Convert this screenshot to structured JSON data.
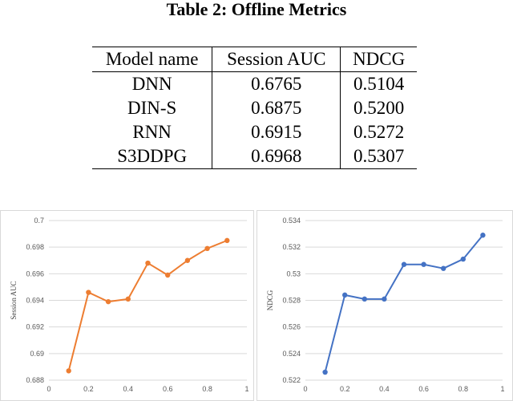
{
  "table": {
    "caption": "Table 2: Offline Metrics",
    "headers": [
      "Model name",
      "Session AUC",
      "NDCG"
    ],
    "rows": [
      [
        "DNN",
        "0.6765",
        "0.5104"
      ],
      [
        "DIN-S",
        "0.6875",
        "0.5200"
      ],
      [
        "RNN",
        "0.6915",
        "0.5272"
      ],
      [
        "S3DDPG",
        "0.6968",
        "0.5307"
      ]
    ]
  },
  "chart_data": [
    {
      "type": "line",
      "ylabel": "Session AUC",
      "xlabel": "",
      "x": [
        0.1,
        0.2,
        0.3,
        0.4,
        0.5,
        0.6,
        0.7,
        0.8,
        0.9
      ],
      "series": [
        {
          "values": [
            0.6887,
            0.6946,
            0.6939,
            0.6941,
            0.6968,
            0.6959,
            0.697,
            0.6979,
            0.6985
          ],
          "color": "#ED7D31"
        }
      ],
      "xlim": [
        0,
        1
      ],
      "ylim": [
        0.688,
        0.7
      ],
      "xticks": [
        "0",
        "0.2",
        "0.4",
        "0.6",
        "0.8",
        "1"
      ],
      "yticks": [
        "0.688",
        "0.69",
        "0.692",
        "0.694",
        "0.696",
        "0.698",
        "0.7"
      ],
      "grid": "horizontal",
      "legend": "none"
    },
    {
      "type": "line",
      "ylabel": "NDCG",
      "xlabel": "",
      "x": [
        0.1,
        0.2,
        0.3,
        0.4,
        0.5,
        0.6,
        0.7,
        0.8,
        0.9
      ],
      "series": [
        {
          "values": [
            0.5226,
            0.5284,
            0.5281,
            0.5281,
            0.5307,
            0.5307,
            0.5304,
            0.5311,
            0.5329
          ],
          "color": "#4472C4"
        }
      ],
      "xlim": [
        0,
        1
      ],
      "ylim": [
        0.522,
        0.534
      ],
      "xticks": [
        "0",
        "0.2",
        "0.4",
        "0.6",
        "0.8",
        "1"
      ],
      "yticks": [
        "0.522",
        "0.524",
        "0.526",
        "0.528",
        "0.53",
        "0.532",
        "0.534"
      ],
      "grid": "horizontal",
      "legend": "none"
    }
  ]
}
